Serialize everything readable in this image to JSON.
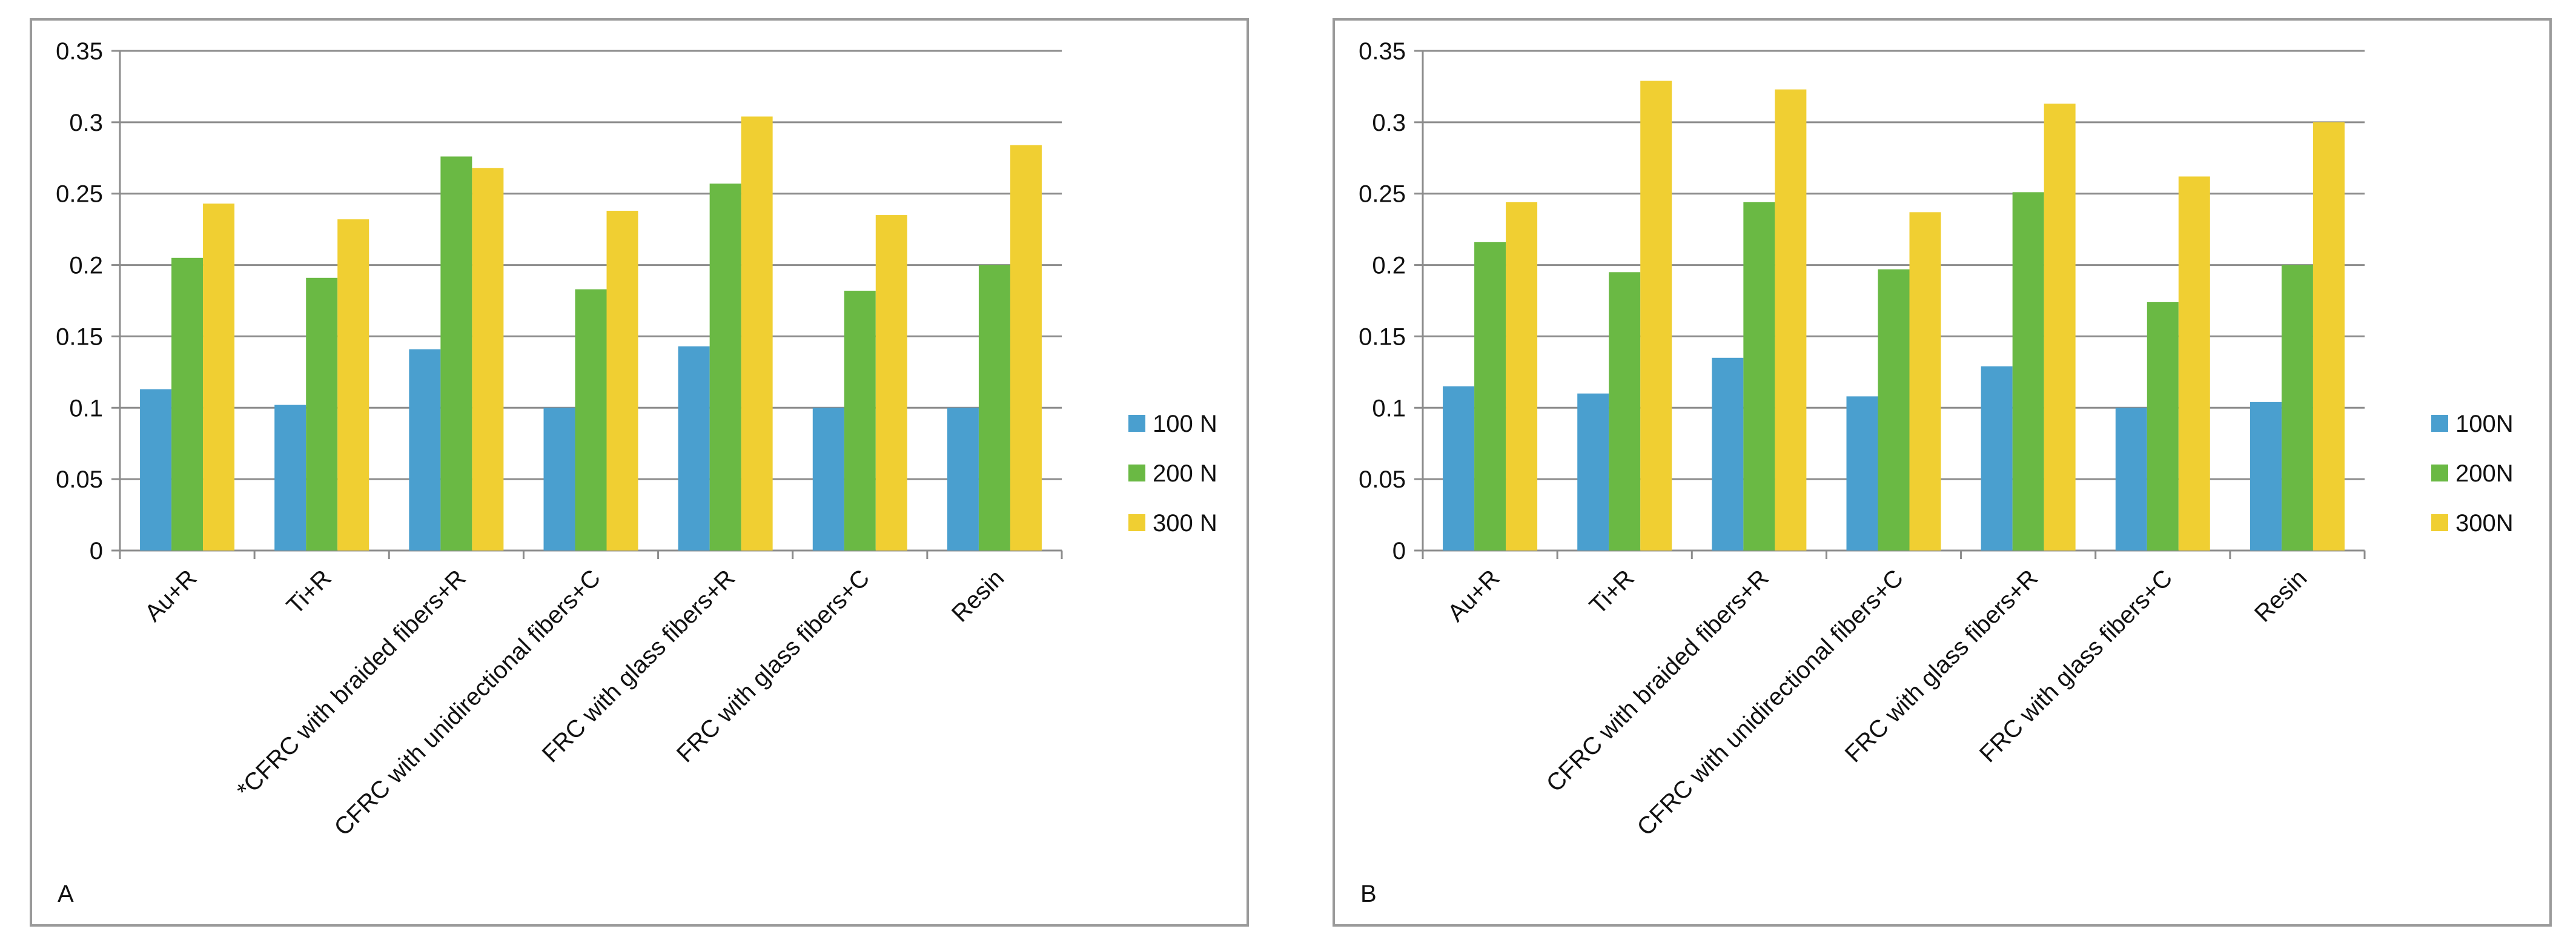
{
  "colors": {
    "s100": "#4a9fcf",
    "s200": "#6ab944",
    "s300": "#f0cf32",
    "grid": "#8c8c8c",
    "axis": "#8c8c8c"
  },
  "chart_data": [
    {
      "type": "bar",
      "panel_label": "A",
      "categories": [
        "Au+R",
        "Ti+R",
        "*CFRC with braided fibers+R",
        "CFRC with unidirectional fibers+C",
        "FRC with glass fibers+R",
        "FRC with glass fibers+C",
        "Resin"
      ],
      "series": [
        {
          "name": "100 N",
          "values": [
            0.113,
            0.102,
            0.141,
            0.1,
            0.143,
            0.1,
            0.1
          ]
        },
        {
          "name": "200 N",
          "values": [
            0.205,
            0.191,
            0.276,
            0.183,
            0.257,
            0.182,
            0.2
          ]
        },
        {
          "name": "300 N",
          "values": [
            0.243,
            0.232,
            0.268,
            0.238,
            0.304,
            0.235,
            0.284
          ]
        }
      ],
      "yticks": [
        "0",
        "0.05",
        "0.1",
        "0.15",
        "0.2",
        "0.25",
        "0.3",
        "0.35"
      ],
      "ylim": [
        0,
        0.35
      ],
      "grid": true,
      "legend": "right",
      "title": "",
      "xlabel": "",
      "ylabel": ""
    },
    {
      "type": "bar",
      "panel_label": "B",
      "categories": [
        "Au+R",
        "Ti+R",
        "CFRC with braided fibers+R",
        "CFRC with unidirectional fibers+C",
        "FRC with glass fibers+R",
        "FRC with glass fibers+C",
        "Resin"
      ],
      "series": [
        {
          "name": "100N",
          "values": [
            0.115,
            0.11,
            0.135,
            0.108,
            0.129,
            0.1,
            0.104
          ]
        },
        {
          "name": "200N",
          "values": [
            0.216,
            0.195,
            0.244,
            0.197,
            0.251,
            0.174,
            0.2
          ]
        },
        {
          "name": "300N",
          "values": [
            0.244,
            0.329,
            0.323,
            0.237,
            0.313,
            0.262,
            0.3
          ]
        }
      ],
      "yticks": [
        "0",
        "0.05",
        "0.1",
        "0.15",
        "0.2",
        "0.25",
        "0.3",
        "0.35"
      ],
      "ylim": [
        0,
        0.35
      ],
      "grid": true,
      "legend": "right",
      "title": "",
      "xlabel": "",
      "ylabel": ""
    }
  ]
}
